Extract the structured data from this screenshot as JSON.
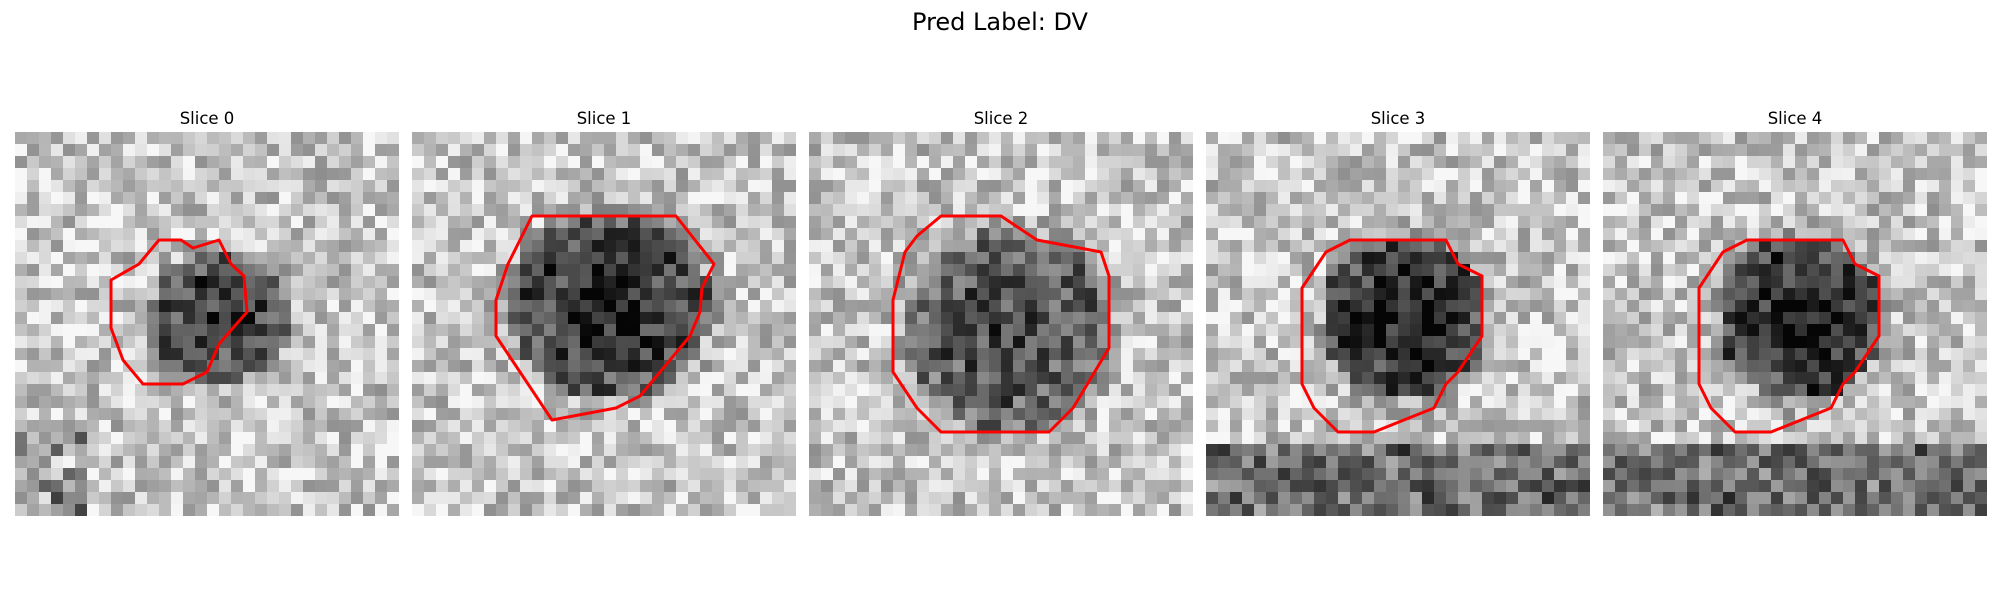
{
  "figure": {
    "suptitle": "Pred Label: DV"
  },
  "panels": [
    {
      "title": "Slice 0"
    },
    {
      "title": "Slice 1"
    },
    {
      "title": "Slice 2"
    },
    {
      "title": "Slice 3"
    },
    {
      "title": "Slice 4"
    }
  ],
  "colors": {
    "contour": "#ff0000",
    "background": "#ffffff"
  }
}
